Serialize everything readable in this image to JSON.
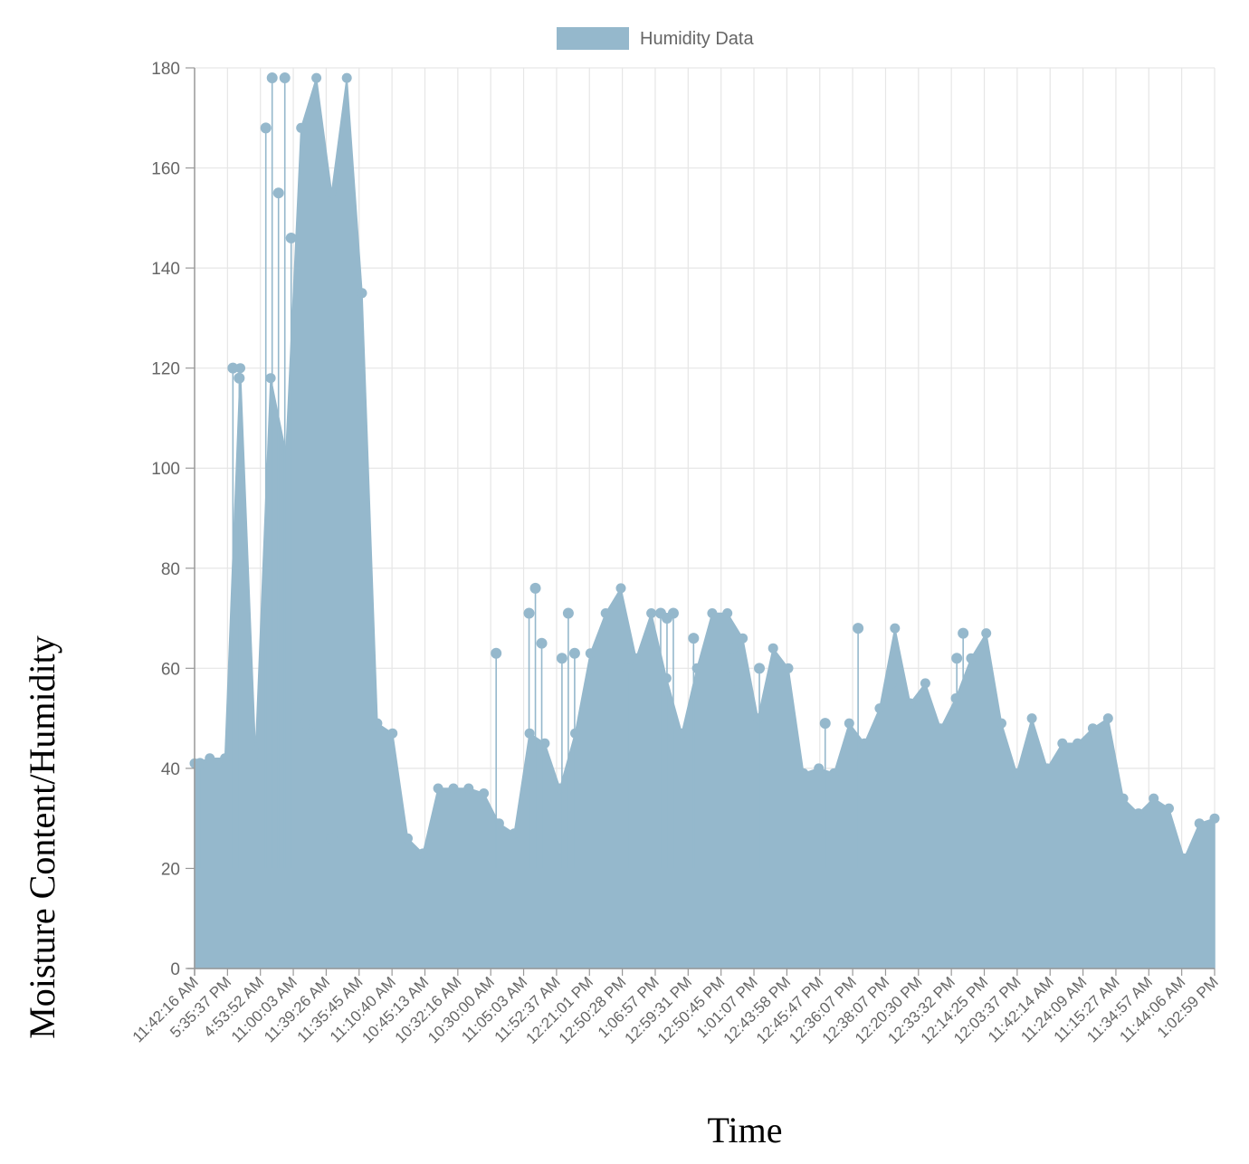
{
  "chart_data": {
    "type": "line",
    "xlabel": "Time",
    "ylabel": "Moisture Content/Humidity",
    "ylim": [
      0,
      180
    ],
    "yticks": [
      0,
      20,
      40,
      60,
      80,
      100,
      120,
      140,
      160,
      180
    ],
    "grid": true,
    "legend_position": "top-center",
    "legend": [
      "Humidity Data"
    ],
    "series_color": "#95b8cc",
    "x_tick_labels": [
      "11:42:16 AM",
      "5:35:37 PM",
      "4:53:52 AM",
      "11:00:03 AM",
      "11:39:26 AM",
      "11:35:45 AM",
      "11:10:40 AM",
      "10:45:13 AM",
      "10:32:16 AM",
      "10:30:00 AM",
      "11:05:03 AM",
      "11:52:37 AM",
      "12:21:01 PM",
      "12:50:28 PM",
      "1:06:57 PM",
      "12:59:31 PM",
      "12:50:45 PM",
      "1:01:07 PM",
      "12:43:58 PM",
      "12:45:47 PM",
      "12:36:07 PM",
      "12:38:07 PM",
      "12:20:30 PM",
      "12:33:32 PM",
      "12:14:25 PM",
      "12:03:37 PM",
      "11:42:14 AM",
      "11:24:09 AM",
      "11:15:27 AM",
      "11:34:57 AM",
      "11:44:06 AM",
      "1:02:59 PM"
    ],
    "series": [
      {
        "name": "Humidity Data",
        "envelope": [
          41,
          42,
          42,
          120,
          43,
          118,
          103,
          168,
          178,
          155,
          178,
          135,
          49,
          47,
          26,
          23,
          36,
          36,
          36,
          35,
          29,
          27,
          47,
          45,
          36,
          47,
          63,
          71,
          76,
          62,
          71,
          58,
          47,
          60,
          71,
          71,
          66,
          50,
          64,
          60,
          39,
          40,
          39,
          49,
          45,
          52,
          68,
          53,
          57,
          48,
          54,
          62,
          67,
          49,
          39,
          50,
          40,
          45,
          45,
          48,
          50,
          34,
          31,
          34,
          32,
          22,
          29,
          30
        ],
        "spikes": [
          {
            "x": "11:42:16 AM",
            "y": 41
          },
          {
            "x": "5:35:37 PM",
            "y": 120
          },
          {
            "x": "5:35:37 PM",
            "y": 118
          },
          {
            "x": "4:53:52 AM",
            "y": 168
          },
          {
            "x": "4:53:52 AM",
            "y": 178
          },
          {
            "x": "4:53:52 AM",
            "y": 155
          },
          {
            "x": "4:53:52 AM",
            "y": 178
          },
          {
            "x": "4:53:52 AM",
            "y": 146
          },
          {
            "x": "11:00:03 AM",
            "y": 53
          },
          {
            "x": "11:00:03 AM",
            "y": 49
          },
          {
            "x": "11:00:03 AM",
            "y": 47
          },
          {
            "x": "11:39:26 AM",
            "y": 26
          },
          {
            "x": "10:30:00 AM",
            "y": 63
          },
          {
            "x": "11:05:03 AM",
            "y": 71
          },
          {
            "x": "11:05:03 AM",
            "y": 76
          },
          {
            "x": "11:05:03 AM",
            "y": 65
          },
          {
            "x": "11:52:37 AM",
            "y": 62
          },
          {
            "x": "11:52:37 AM",
            "y": 71
          },
          {
            "x": "11:52:37 AM",
            "y": 63
          },
          {
            "x": "12:21:01 PM",
            "y": 58
          },
          {
            "x": "12:50:28 PM",
            "y": 60
          },
          {
            "x": "1:06:57 PM",
            "y": 71
          },
          {
            "x": "1:06:57 PM",
            "y": 70
          },
          {
            "x": "1:06:57 PM",
            "y": 71
          },
          {
            "x": "12:59:31 PM",
            "y": 66
          },
          {
            "x": "12:50:45 PM",
            "y": 60
          },
          {
            "x": "12:50:45 PM",
            "y": 64
          },
          {
            "x": "12:50:45 PM",
            "y": 57
          },
          {
            "x": "1:01:07 PM",
            "y": 60
          },
          {
            "x": "12:45:47 PM",
            "y": 49
          },
          {
            "x": "12:36:07 PM",
            "y": 68
          },
          {
            "x": "12:38:07 PM",
            "y": 57
          },
          {
            "x": "12:33:32 PM",
            "y": 62
          },
          {
            "x": "12:33:32 PM",
            "y": 67
          }
        ]
      }
    ]
  }
}
